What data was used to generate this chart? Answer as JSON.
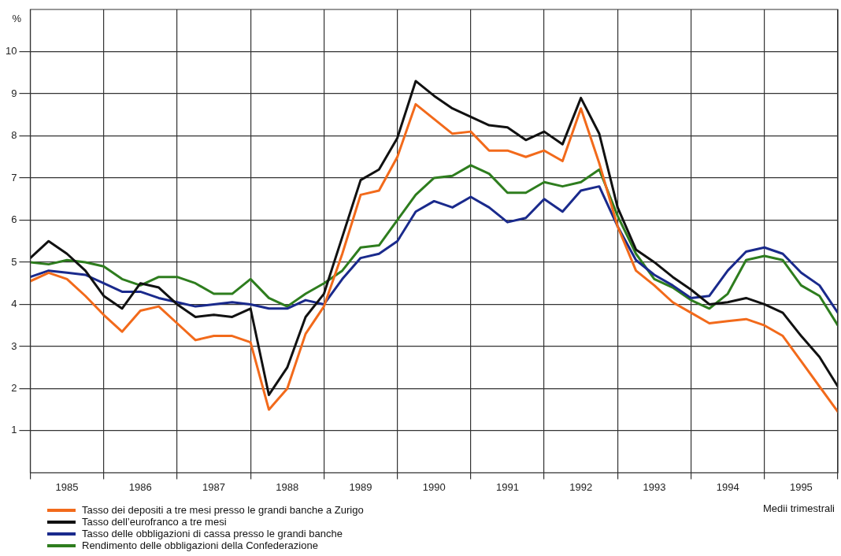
{
  "chart_data": {
    "type": "line",
    "ylabel": "%",
    "x": [
      1985,
      1985.25,
      1985.5,
      1985.75,
      1986,
      1986.25,
      1986.5,
      1986.75,
      1987,
      1987.25,
      1987.5,
      1987.75,
      1988,
      1988.25,
      1988.5,
      1988.75,
      1989,
      1989.25,
      1989.5,
      1989.75,
      1990,
      1990.25,
      1990.5,
      1990.75,
      1991,
      1991.25,
      1991.5,
      1991.75,
      1992,
      1992.25,
      1992.5,
      1992.75,
      1993,
      1993.25,
      1993.5,
      1993.75,
      1994,
      1994.25,
      1994.5,
      1994.75,
      1995,
      1995.25,
      1995.5,
      1995.75,
      1996
    ],
    "series": [
      {
        "name": "Tasso dei depositi a tre mesi presso le grandi banche a Zurigo",
        "color": "#f26a1b",
        "values": [
          4.55,
          4.75,
          4.6,
          4.2,
          3.75,
          3.35,
          3.85,
          3.95,
          3.55,
          3.15,
          3.25,
          3.25,
          3.1,
          1.5,
          2.0,
          3.3,
          3.95,
          5.2,
          6.6,
          6.7,
          7.5,
          8.75,
          8.4,
          8.05,
          8.1,
          7.65,
          7.65,
          7.5,
          7.65,
          7.4,
          8.65,
          7.35,
          5.85,
          4.8,
          4.45,
          4.05,
          3.8,
          3.55,
          3.6,
          3.65,
          3.5,
          3.25,
          2.65,
          2.05,
          1.45
        ]
      },
      {
        "name": "Tasso dell’eurofranco a tre mesi",
        "color": "#111111",
        "values": [
          5.1,
          5.5,
          5.2,
          4.8,
          4.2,
          3.9,
          4.5,
          4.4,
          4.0,
          3.7,
          3.75,
          3.7,
          3.9,
          1.85,
          2.5,
          3.7,
          4.25,
          5.6,
          6.95,
          7.2,
          7.95,
          9.3,
          8.95,
          8.65,
          8.45,
          8.25,
          8.2,
          7.9,
          8.1,
          7.8,
          8.9,
          8.05,
          6.3,
          5.3,
          5.0,
          4.65,
          4.35,
          4.0,
          4.05,
          4.15,
          4.0,
          3.8,
          3.25,
          2.75,
          2.05
        ]
      },
      {
        "name": "Tasso delle obbligazioni di cassa presso le grandi banche",
        "color": "#1a2a8c",
        "values": [
          4.65,
          4.8,
          4.75,
          4.7,
          4.5,
          4.3,
          4.3,
          4.15,
          4.05,
          3.95,
          4.0,
          4.05,
          4.0,
          3.9,
          3.9,
          4.1,
          4.0,
          4.6,
          5.1,
          5.2,
          5.5,
          6.2,
          6.45,
          6.3,
          6.55,
          6.3,
          5.95,
          6.05,
          6.5,
          6.2,
          6.7,
          6.8,
          5.85,
          5.05,
          4.7,
          4.45,
          4.15,
          4.2,
          4.8,
          5.25,
          5.35,
          5.2,
          4.75,
          4.45,
          3.8
        ]
      },
      {
        "name": "Rendimento delle obbligazioni della Confederazione",
        "color": "#2e7d1e",
        "values": [
          5.0,
          4.95,
          5.05,
          5.0,
          4.9,
          4.6,
          4.45,
          4.65,
          4.65,
          4.5,
          4.25,
          4.25,
          4.6,
          4.15,
          3.95,
          4.25,
          4.5,
          4.8,
          5.35,
          5.4,
          6.0,
          6.6,
          7.0,
          7.05,
          7.3,
          7.1,
          6.65,
          6.65,
          6.9,
          6.8,
          6.9,
          7.2,
          6.1,
          5.2,
          4.6,
          4.4,
          4.1,
          3.9,
          4.25,
          5.05,
          5.15,
          5.05,
          4.45,
          4.2,
          3.5
        ]
      }
    ],
    "xlim": [
      1985,
      1996
    ],
    "xticks": [
      {
        "value": 1985,
        "label": null
      },
      {
        "value": 1985.5,
        "label": "1985"
      },
      {
        "value": 1986,
        "label": null
      },
      {
        "value": 1986.5,
        "label": "1986"
      },
      {
        "value": 1987,
        "label": null
      },
      {
        "value": 1987.5,
        "label": "1987"
      },
      {
        "value": 1988,
        "label": null
      },
      {
        "value": 1988.5,
        "label": "1988"
      },
      {
        "value": 1989,
        "label": null
      },
      {
        "value": 1989.5,
        "label": "1989"
      },
      {
        "value": 1990,
        "label": null
      },
      {
        "value": 1990.5,
        "label": "1990"
      },
      {
        "value": 1991,
        "label": null
      },
      {
        "value": 1991.5,
        "label": "1991"
      },
      {
        "value": 1992,
        "label": null
      },
      {
        "value": 1992.5,
        "label": "1992"
      },
      {
        "value": 1993,
        "label": null
      },
      {
        "value": 1993.5,
        "label": "1993"
      },
      {
        "value": 1994,
        "label": null
      },
      {
        "value": 1994.5,
        "label": "1994"
      },
      {
        "value": 1995,
        "label": null
      },
      {
        "value": 1995.5,
        "label": "1995"
      },
      {
        "value": 1996,
        "label": null
      }
    ],
    "ylim": [
      0,
      11
    ],
    "yticks": [
      1,
      2,
      3,
      4,
      5,
      6,
      7,
      8,
      9,
      10
    ],
    "grid": true,
    "legend": "bottom",
    "marker": "none",
    "line_style": "solid",
    "annotations": [
      "Medii trimestrali"
    ]
  }
}
